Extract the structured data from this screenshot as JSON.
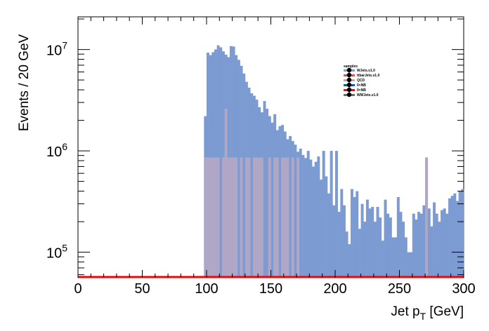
{
  "chart_data": {
    "type": "bar",
    "ylabel": "Events / 20 GeV",
    "xlabel_main": "Jet p",
    "xlabel_sub": "T",
    "xlabel_unit": " [GeV]",
    "x_range": [
      0,
      300
    ],
    "y_range": [
      56000,
      21000000
    ],
    "y_scale": "log",
    "x_ticks": [
      0,
      50,
      100,
      150,
      200,
      250,
      300
    ],
    "x_tick_labels": [
      "0",
      "50",
      "100",
      "150",
      "200",
      "250",
      "300"
    ],
    "y_ticks": [
      {
        "value": 100000,
        "base": "10",
        "exp": "5"
      },
      {
        "value": 1000000,
        "base": "10",
        "exp": "6"
      },
      {
        "value": 10000000,
        "base": "10",
        "exp": "7"
      }
    ],
    "bin_width": 2,
    "stacked": true,
    "legend_title": "samples",
    "legend_placement": "top-right inside plot",
    "series": [
      {
        "name": "WJets.v1.0",
        "color": "#7b9bd2",
        "x_start": 98,
        "values": [
          2200000,
          9300000,
          8800000,
          9400000,
          10000000,
          11000000,
          10500000,
          9600000,
          8900000,
          8400000,
          10800000,
          10700000,
          8800000,
          7900000,
          6900000,
          5800000,
          4800000,
          4200000,
          3700000,
          3500000,
          3200000,
          2700000,
          2400000,
          3100000,
          2600000,
          2200000,
          1900000,
          2300000,
          1600000,
          1750000,
          1800000,
          1550000,
          1300000,
          1400000,
          1250000,
          1150000,
          980000,
          1050000,
          910000,
          850000,
          1000000,
          820000,
          700000,
          780000,
          880000,
          520000,
          1000000,
          560000,
          380000,
          1000000,
          290000,
          1000000,
          250000,
          420000,
          290000,
          160000,
          120000,
          420000,
          350000,
          400000,
          170000,
          300000,
          200000,
          330000,
          270000,
          280000,
          200000,
          280000,
          220000,
          130000,
          330000,
          240000,
          220000,
          140000,
          140000,
          350000,
          250000,
          200000,
          140000,
          100000,
          100000,
          240000,
          210000,
          250000,
          240000,
          290000,
          230000,
          270000,
          180000,
          310000,
          240000,
          200000,
          260000,
          270000,
          240000,
          340000,
          360000,
          380000,
          320000,
          400000,
          420000
        ]
      },
      {
        "name": "ttbarJets.v1.0",
        "color": "#c95a5a",
        "x_start": 98,
        "values": []
      },
      {
        "name": "QCD",
        "color": "#b0a7c6",
        "x_start": 98,
        "values": [
          860000,
          860000,
          860000,
          860000,
          860000,
          860000,
          0,
          860000,
          2600000,
          860000,
          860000,
          860000,
          860000,
          0,
          860000,
          0,
          860000,
          860000,
          0,
          860000,
          860000,
          860000,
          860000,
          0,
          0,
          860000,
          0,
          860000,
          860000,
          0,
          860000,
          860000,
          860000,
          0,
          860000,
          0,
          860000,
          0,
          0,
          0,
          0,
          0,
          0,
          0,
          0,
          0,
          0,
          0,
          0,
          0,
          0,
          0,
          0,
          0,
          0,
          0,
          0,
          0,
          0,
          0,
          0,
          0,
          0,
          0,
          0,
          0,
          0,
          0,
          0,
          0,
          0,
          0,
          0,
          0,
          0,
          0,
          0,
          0,
          0,
          0,
          0,
          0,
          0,
          0,
          0,
          0,
          860000,
          0,
          0,
          0,
          0,
          0,
          0,
          0,
          0,
          0,
          0,
          0,
          0,
          0,
          0
        ]
      },
      {
        "name": "0&lt;NB",
        "color": "#1f4fb0",
        "x_start": 0,
        "values": []
      },
      {
        "name": "0&lt;NB",
        "color": "#e01010",
        "x_start": 0,
        "values": []
      },
      {
        "name": "WWJets.v1.0",
        "color": "#6a6a6a",
        "x_start": 0,
        "values": []
      }
    ],
    "baseline_line_color": "#ff0000",
    "legend_labels": [
      "WJets.v1.0",
      "ttbarJets.v1.0",
      "QCD",
      "0&lt;NB",
      "0&lt;NB",
      "WWJets.v1.0"
    ]
  }
}
